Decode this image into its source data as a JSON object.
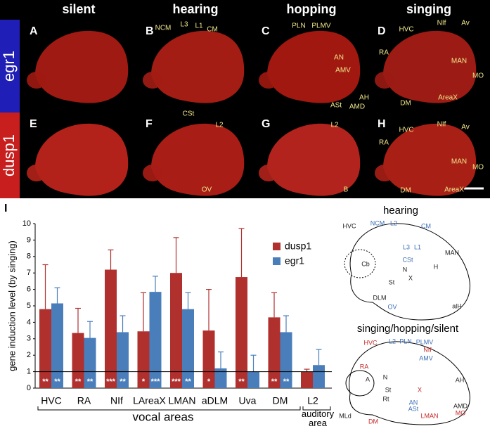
{
  "figure": {
    "columns": [
      "silent",
      "hearing",
      "hopping",
      "singing"
    ],
    "rows": [
      "egr1",
      "dusp1"
    ],
    "panels": [
      {
        "letter": "A"
      },
      {
        "letter": "B",
        "labels": [
          "NCM",
          "L3",
          "L1",
          "CM",
          "CSt"
        ]
      },
      {
        "letter": "C",
        "labels": [
          "PLN",
          "PLMV",
          "AN",
          "AMV",
          "AH",
          "ASt",
          "AMD"
        ]
      },
      {
        "letter": "D",
        "labels": [
          "HVC",
          "NIf",
          "Av",
          "RA",
          "MAN",
          "MO",
          "DM",
          "AreaX"
        ]
      },
      {
        "letter": "E"
      },
      {
        "letter": "F",
        "labels": [
          "L2",
          "OV"
        ]
      },
      {
        "letter": "G",
        "labels": [
          "L2",
          "B"
        ]
      },
      {
        "letter": "H",
        "labels": [
          "HVC",
          "NIf",
          "Av",
          "RA",
          "MAN",
          "MO",
          "DM",
          "AreaX"
        ]
      }
    ]
  },
  "chart_data": {
    "type": "bar",
    "panel_label": "I",
    "ylabel": "gene induction level (by singing)",
    "categories": [
      "HVC",
      "RA",
      "NIf",
      "LAreaX",
      "LMAN",
      "aDLM",
      "Uva",
      "DM",
      "L2"
    ],
    "series": [
      {
        "name": "dusp1",
        "color": "#b0302e",
        "values": [
          4.8,
          3.35,
          7.2,
          3.45,
          7.0,
          3.5,
          6.75,
          4.3,
          1.0
        ],
        "errors": [
          2.7,
          1.5,
          1.2,
          2.35,
          2.15,
          2.5,
          2.95,
          1.5,
          0.15
        ],
        "stars": [
          "**",
          "**",
          "***",
          "*",
          "***",
          "*",
          "**",
          "**",
          null
        ]
      },
      {
        "name": "egr1",
        "color": "#4a7ebb",
        "values": [
          5.15,
          3.05,
          3.4,
          5.85,
          4.8,
          1.2,
          1.0,
          3.4,
          1.4
        ],
        "errors": [
          0.95,
          1.0,
          1.0,
          0.95,
          1.0,
          1.0,
          1.0,
          1.0,
          0.95
        ],
        "stars": [
          "**",
          "**",
          "**",
          "***",
          "**",
          null,
          null,
          "**",
          null
        ]
      }
    ],
    "reference_line": 1,
    "groups": [
      "vocal areas",
      "auditory area"
    ],
    "ylim": [
      0,
      10
    ],
    "yticks": [
      0,
      1,
      2,
      3,
      4,
      5,
      6,
      7,
      8,
      9,
      10
    ]
  },
  "diagrams": [
    {
      "title": "hearing",
      "labels": [
        "HVC",
        "NCM",
        "L2",
        "CM",
        "L3",
        "L1",
        "CSt",
        "Cb",
        "N",
        "H",
        "MAN",
        "St",
        "DLM",
        "OV",
        "X",
        "alH"
      ]
    },
    {
      "title": "singing/hopping/silent",
      "labels": [
        "HVC",
        "L2",
        "PLN",
        "PLMV",
        "NIf",
        "AMV",
        "RA",
        "A",
        "N",
        "St",
        "Rt",
        "X",
        "AN",
        "ASt",
        "AH",
        "AMD",
        "MO",
        "LMAN",
        "DM",
        "MLd"
      ]
    }
  ]
}
